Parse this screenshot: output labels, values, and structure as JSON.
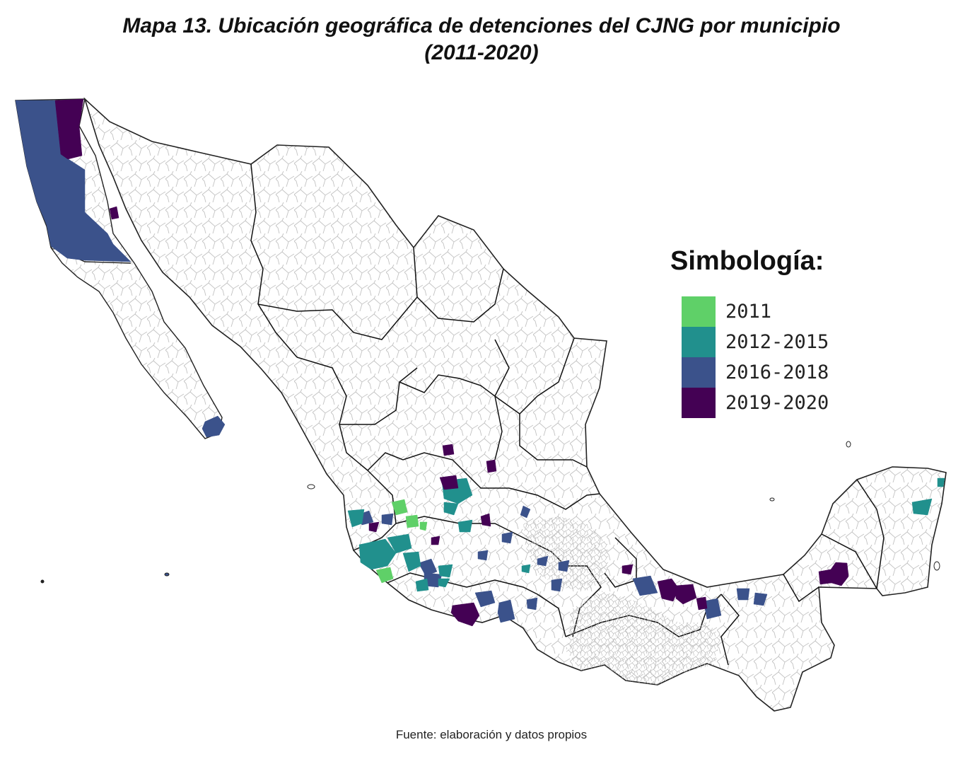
{
  "title": {
    "line1": "Mapa 13. Ubicación geográfica de detenciones del CJNG por municipio",
    "line2": "(2011-2020)"
  },
  "legend": {
    "title": "Simbología:",
    "items": [
      {
        "label": "2011",
        "color": "#5fd068"
      },
      {
        "label": "2012-2015",
        "color": "#21908d"
      },
      {
        "label": "2016-2018",
        "color": "#3b528b"
      },
      {
        "label": "2019-2020",
        "color": "#440154"
      }
    ]
  },
  "source": "Fuente: elaboración y datos propios",
  "colors": {
    "background": "#ffffff",
    "state_border": "#111111",
    "municipality_border": "#b8b8b8"
  }
}
